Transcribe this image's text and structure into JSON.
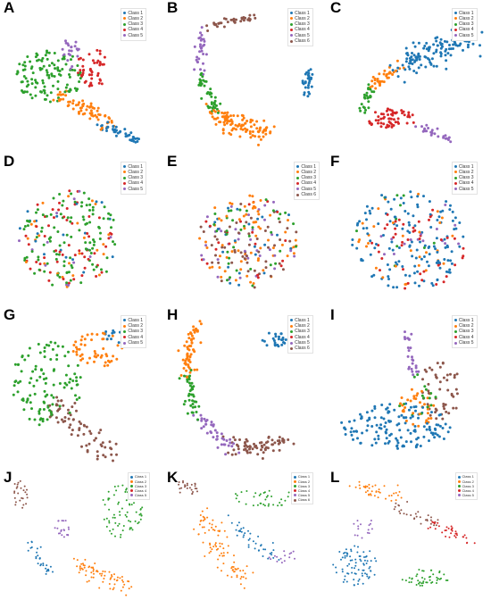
{
  "palette": {
    "Class 1": "#1f77b4",
    "Class 2": "#ff7f0e",
    "Class 3": "#2ca02c",
    "Class 4": "#d62728",
    "Class 5": "#9467bd",
    "Class 6": "#8c564b"
  },
  "chart_data": [
    {
      "panel": "A",
      "type": "scatter",
      "legend": [
        "Class 1",
        "Class 2",
        "Class 3",
        "Class 4",
        "Class 5"
      ],
      "clusters": [
        {
          "series": "Class 3",
          "n": 120,
          "shape": "blob",
          "cx": 0.3,
          "cy": 0.48,
          "rx": 0.22,
          "ry": 0.2
        },
        {
          "series": "Class 4",
          "n": 45,
          "shape": "blob",
          "cx": 0.58,
          "cy": 0.42,
          "rx": 0.12,
          "ry": 0.14
        },
        {
          "series": "Class 5",
          "n": 22,
          "shape": "blob",
          "cx": 0.43,
          "cy": 0.32,
          "rx": 0.06,
          "ry": 0.13
        },
        {
          "series": "Class 2",
          "n": 70,
          "shape": "path",
          "pts": [
            [
              0.34,
              0.62
            ],
            [
              0.52,
              0.72
            ],
            [
              0.68,
              0.84
            ]
          ],
          "w": 0.05
        },
        {
          "series": "Class 1",
          "n": 40,
          "shape": "path",
          "pts": [
            [
              0.62,
              0.84
            ],
            [
              0.75,
              0.9
            ],
            [
              0.84,
              0.96
            ]
          ],
          "w": 0.03
        }
      ]
    },
    {
      "panel": "B",
      "type": "scatter",
      "legend": [
        "Class 1",
        "Class 2",
        "Class 3",
        "Class 4",
        "Class 5",
        "Class 6"
      ],
      "clusters": [
        {
          "series": "Class 6",
          "n": 35,
          "shape": "path",
          "pts": [
            [
              0.27,
              0.12
            ],
            [
              0.42,
              0.06
            ],
            [
              0.55,
              0.05
            ]
          ],
          "w": 0.025
        },
        {
          "series": "Class 5",
          "n": 30,
          "shape": "path",
          "pts": [
            [
              0.24,
              0.12
            ],
            [
              0.2,
              0.3
            ],
            [
              0.22,
              0.45
            ]
          ],
          "w": 0.03
        },
        {
          "series": "Class 3",
          "n": 40,
          "shape": "path",
          "pts": [
            [
              0.22,
              0.45
            ],
            [
              0.26,
              0.62
            ],
            [
              0.32,
              0.75
            ]
          ],
          "w": 0.035
        },
        {
          "series": "Class 2",
          "n": 110,
          "shape": "path",
          "pts": [
            [
              0.28,
              0.74
            ],
            [
              0.45,
              0.86
            ],
            [
              0.65,
              0.9
            ]
          ],
          "w": 0.07
        },
        {
          "series": "Class 1",
          "n": 30,
          "shape": "blob",
          "cx": 0.9,
          "cy": 0.55,
          "rx": 0.04,
          "ry": 0.13
        }
      ]
    },
    {
      "panel": "C",
      "type": "scatter",
      "legend": [
        "Class 1",
        "Class 2",
        "Class 3",
        "Class 4",
        "Class 5"
      ],
      "clusters": [
        {
          "series": "Class 1",
          "n": 130,
          "shape": "path",
          "pts": [
            [
              0.45,
              0.4
            ],
            [
              0.65,
              0.3
            ],
            [
              0.88,
              0.2
            ]
          ],
          "w": 0.09
        },
        {
          "series": "Class 2",
          "n": 35,
          "shape": "path",
          "pts": [
            [
              0.45,
              0.4
            ],
            [
              0.35,
              0.48
            ],
            [
              0.27,
              0.56
            ]
          ],
          "w": 0.04
        },
        {
          "series": "Class 3",
          "n": 25,
          "shape": "path",
          "pts": [
            [
              0.27,
              0.52
            ],
            [
              0.24,
              0.62
            ],
            [
              0.22,
              0.74
            ]
          ],
          "w": 0.03
        },
        {
          "series": "Class 4",
          "n": 60,
          "shape": "blob",
          "cx": 0.4,
          "cy": 0.8,
          "rx": 0.16,
          "ry": 0.08
        },
        {
          "series": "Class 5",
          "n": 25,
          "shape": "path",
          "pts": [
            [
              0.55,
              0.86
            ],
            [
              0.68,
              0.9
            ],
            [
              0.76,
              0.96
            ]
          ],
          "w": 0.03
        }
      ]
    },
    {
      "panel": "D",
      "type": "scatter",
      "legend": [
        "Class 1",
        "Class 2",
        "Class 3",
        "Class 4",
        "Class 5"
      ],
      "clusters": [
        {
          "series": "Class 3",
          "n": 110,
          "shape": "blob",
          "cx": 0.42,
          "cy": 0.55,
          "rx": 0.32,
          "ry": 0.36
        },
        {
          "series": "Class 4",
          "n": 55,
          "shape": "blob",
          "cx": 0.42,
          "cy": 0.55,
          "rx": 0.32,
          "ry": 0.36
        },
        {
          "series": "Class 2",
          "n": 25,
          "shape": "blob",
          "cx": 0.42,
          "cy": 0.55,
          "rx": 0.32,
          "ry": 0.36
        },
        {
          "series": "Class 1",
          "n": 20,
          "shape": "blob",
          "cx": 0.42,
          "cy": 0.55,
          "rx": 0.32,
          "ry": 0.36
        },
        {
          "series": "Class 5",
          "n": 12,
          "shape": "blob",
          "cx": 0.42,
          "cy": 0.55,
          "rx": 0.32,
          "ry": 0.36
        }
      ]
    },
    {
      "panel": "E",
      "type": "scatter",
      "legend": [
        "Class 1",
        "Class 2",
        "Class 3",
        "Class 4",
        "Class 5",
        "Class 6"
      ],
      "clusters": [
        {
          "series": "Class 2",
          "n": 70,
          "shape": "blob",
          "cx": 0.52,
          "cy": 0.57,
          "rx": 0.32,
          "ry": 0.34
        },
        {
          "series": "Class 6",
          "n": 50,
          "shape": "blob",
          "cx": 0.52,
          "cy": 0.57,
          "rx": 0.32,
          "ry": 0.34
        },
        {
          "series": "Class 3",
          "n": 35,
          "shape": "blob",
          "cx": 0.52,
          "cy": 0.57,
          "rx": 0.32,
          "ry": 0.34
        },
        {
          "series": "Class 5",
          "n": 35,
          "shape": "blob",
          "cx": 0.52,
          "cy": 0.57,
          "rx": 0.32,
          "ry": 0.34
        },
        {
          "series": "Class 1",
          "n": 25,
          "shape": "blob",
          "cx": 0.52,
          "cy": 0.57,
          "rx": 0.32,
          "ry": 0.34
        },
        {
          "series": "Class 4",
          "n": 20,
          "shape": "blob",
          "cx": 0.52,
          "cy": 0.57,
          "rx": 0.32,
          "ry": 0.34
        }
      ]
    },
    {
      "panel": "F",
      "type": "scatter",
      "legend": [
        "Class 1",
        "Class 2",
        "Class 3",
        "Class 4",
        "Class 5"
      ],
      "clusters": [
        {
          "series": "Class 1",
          "n": 140,
          "shape": "blob",
          "cx": 0.5,
          "cy": 0.55,
          "rx": 0.36,
          "ry": 0.38
        },
        {
          "series": "Class 4",
          "n": 45,
          "shape": "blob",
          "cx": 0.55,
          "cy": 0.62,
          "rx": 0.3,
          "ry": 0.32
        },
        {
          "series": "Class 2",
          "n": 30,
          "shape": "blob",
          "cx": 0.5,
          "cy": 0.55,
          "rx": 0.34,
          "ry": 0.36
        },
        {
          "series": "Class 5",
          "n": 15,
          "shape": "blob",
          "cx": 0.55,
          "cy": 0.5,
          "rx": 0.28,
          "ry": 0.3
        },
        {
          "series": "Class 3",
          "n": 10,
          "shape": "blob",
          "cx": 0.45,
          "cy": 0.5,
          "rx": 0.28,
          "ry": 0.3
        }
      ]
    },
    {
      "panel": "G",
      "type": "scatter",
      "legend": [
        "Class 1",
        "Class 2",
        "Class 3",
        "Class 4",
        "Class 5"
      ],
      "clusters": [
        {
          "series": "Class 3",
          "n": 110,
          "shape": "blob",
          "cx": 0.28,
          "cy": 0.45,
          "rx": 0.22,
          "ry": 0.3
        },
        {
          "series": "Class 2",
          "n": 50,
          "shape": "blob",
          "cx": 0.6,
          "cy": 0.22,
          "rx": 0.16,
          "ry": 0.12
        },
        {
          "series": "Class 6",
          "n": 70,
          "shape": "path",
          "pts": [
            [
              0.3,
              0.6
            ],
            [
              0.5,
              0.75
            ],
            [
              0.68,
              0.95
            ]
          ],
          "w": 0.07
        },
        {
          "series": "Class 1",
          "n": 15,
          "shape": "blob",
          "cx": 0.72,
          "cy": 0.12,
          "rx": 0.08,
          "ry": 0.06
        }
      ]
    },
    {
      "panel": "H",
      "type": "scatter",
      "legend": [
        "Class 1",
        "Class 2",
        "Class 3",
        "Class 4",
        "Class 5",
        "Class 6"
      ],
      "clusters": [
        {
          "series": "Class 2",
          "n": 60,
          "shape": "path",
          "pts": [
            [
              0.18,
              0.05
            ],
            [
              0.14,
              0.22
            ],
            [
              0.14,
              0.4
            ]
          ],
          "w": 0.04
        },
        {
          "series": "Class 3",
          "n": 40,
          "shape": "path",
          "pts": [
            [
              0.14,
              0.38
            ],
            [
              0.15,
              0.55
            ],
            [
              0.2,
              0.68
            ]
          ],
          "w": 0.035
        },
        {
          "series": "Class 5",
          "n": 40,
          "shape": "path",
          "pts": [
            [
              0.2,
              0.68
            ],
            [
              0.3,
              0.82
            ],
            [
              0.42,
              0.9
            ]
          ],
          "w": 0.04
        },
        {
          "series": "Class 6",
          "n": 70,
          "shape": "path",
          "pts": [
            [
              0.4,
              0.88
            ],
            [
              0.58,
              0.92
            ],
            [
              0.76,
              0.86
            ]
          ],
          "w": 0.05
        },
        {
          "series": "Class 1",
          "n": 25,
          "shape": "blob",
          "cx": 0.68,
          "cy": 0.16,
          "rx": 0.08,
          "ry": 0.07
        }
      ]
    },
    {
      "panel": "I",
      "type": "scatter",
      "legend": [
        "Class 1",
        "Class 2",
        "Class 3",
        "Class 4",
        "Class 5"
      ],
      "clusters": [
        {
          "series": "Class 1",
          "n": 140,
          "shape": "blob",
          "cx": 0.42,
          "cy": 0.75,
          "rx": 0.36,
          "ry": 0.16
        },
        {
          "series": "Class 6",
          "n": 50,
          "shape": "blob",
          "cx": 0.7,
          "cy": 0.5,
          "rx": 0.14,
          "ry": 0.2
        },
        {
          "series": "Class 2",
          "n": 35,
          "shape": "blob",
          "cx": 0.55,
          "cy": 0.62,
          "rx": 0.12,
          "ry": 0.14
        },
        {
          "series": "Class 5",
          "n": 25,
          "shape": "path",
          "pts": [
            [
              0.48,
              0.1
            ],
            [
              0.5,
              0.28
            ],
            [
              0.56,
              0.4
            ]
          ],
          "w": 0.03
        },
        {
          "series": "Class 3",
          "n": 15,
          "shape": "blob",
          "cx": 0.55,
          "cy": 0.55,
          "rx": 0.12,
          "ry": 0.16
        }
      ]
    },
    {
      "panel": "J",
      "type": "scatter",
      "legend": [
        "Class 1",
        "Class 2",
        "Class 3",
        "Class 4",
        "Class 5"
      ],
      "clusters": [
        {
          "series": "Class 3",
          "n": 70,
          "shape": "blob",
          "cx": 0.75,
          "cy": 0.3,
          "rx": 0.14,
          "ry": 0.22
        },
        {
          "series": "Class 6",
          "n": 25,
          "shape": "blob",
          "cx": 0.1,
          "cy": 0.18,
          "rx": 0.06,
          "ry": 0.12
        },
        {
          "series": "Class 1",
          "n": 30,
          "shape": "path",
          "pts": [
            [
              0.16,
              0.55
            ],
            [
              0.24,
              0.7
            ],
            [
              0.3,
              0.82
            ]
          ],
          "w": 0.04
        },
        {
          "series": "Class 2",
          "n": 70,
          "shape": "path",
          "pts": [
            [
              0.5,
              0.75
            ],
            [
              0.65,
              0.82
            ],
            [
              0.8,
              0.92
            ]
          ],
          "w": 0.06
        },
        {
          "series": "Class 5",
          "n": 20,
          "shape": "blob",
          "cx": 0.38,
          "cy": 0.45,
          "rx": 0.05,
          "ry": 0.08
        }
      ]
    },
    {
      "panel": "K",
      "type": "scatter",
      "legend": [
        "Class 1",
        "Class 2",
        "Class 3",
        "Class 4",
        "Class 5",
        "Class 6"
      ],
      "clusters": [
        {
          "series": "Class 2",
          "n": 90,
          "shape": "path",
          "pts": [
            [
              0.22,
              0.3
            ],
            [
              0.3,
              0.6
            ],
            [
              0.5,
              0.9
            ]
          ],
          "w": 0.07
        },
        {
          "series": "Class 3",
          "n": 35,
          "shape": "blob",
          "cx": 0.62,
          "cy": 0.2,
          "rx": 0.2,
          "ry": 0.08
        },
        {
          "series": "Class 6",
          "n": 25,
          "shape": "blob",
          "cx": 0.13,
          "cy": 0.12,
          "rx": 0.08,
          "ry": 0.06
        },
        {
          "series": "Class 1",
          "n": 40,
          "shape": "path",
          "pts": [
            [
              0.4,
              0.4
            ],
            [
              0.55,
              0.55
            ],
            [
              0.7,
              0.7
            ]
          ],
          "w": 0.05
        },
        {
          "series": "Class 5",
          "n": 15,
          "shape": "blob",
          "cx": 0.75,
          "cy": 0.68,
          "rx": 0.1,
          "ry": 0.06
        }
      ]
    },
    {
      "panel": "L",
      "type": "scatter",
      "legend": [
        "Class 1",
        "Class 2",
        "Class 3",
        "Class 4",
        "Class 5"
      ],
      "clusters": [
        {
          "series": "Class 1",
          "n": 80,
          "shape": "blob",
          "cx": 0.16,
          "cy": 0.75,
          "rx": 0.14,
          "ry": 0.16
        },
        {
          "series": "Class 2",
          "n": 40,
          "shape": "path",
          "pts": [
            [
              0.15,
              0.1
            ],
            [
              0.3,
              0.15
            ],
            [
              0.45,
              0.2
            ]
          ],
          "w": 0.04
        },
        {
          "series": "Class 3",
          "n": 45,
          "shape": "blob",
          "cx": 0.6,
          "cy": 0.85,
          "rx": 0.16,
          "ry": 0.07
        },
        {
          "series": "Class 4",
          "n": 35,
          "shape": "path",
          "pts": [
            [
              0.62,
              0.4
            ],
            [
              0.76,
              0.48
            ],
            [
              0.9,
              0.56
            ]
          ],
          "w": 0.035
        },
        {
          "series": "Class 6",
          "n": 30,
          "shape": "path",
          "pts": [
            [
              0.42,
              0.28
            ],
            [
              0.55,
              0.35
            ],
            [
              0.68,
              0.42
            ]
          ],
          "w": 0.04
        },
        {
          "series": "Class 5",
          "n": 15,
          "shape": "blob",
          "cx": 0.22,
          "cy": 0.45,
          "rx": 0.08,
          "ry": 0.08
        }
      ]
    }
  ]
}
